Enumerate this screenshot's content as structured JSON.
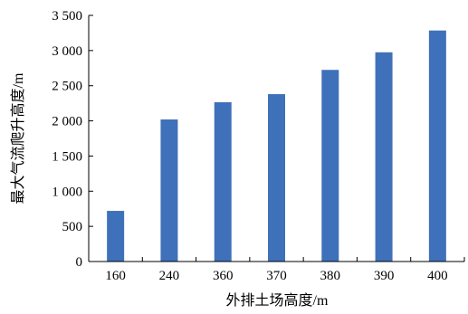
{
  "chart_data": {
    "type": "bar",
    "title": "",
    "xlabel": "外排土场高度/m",
    "ylabel": "最大气流爬升高度/m",
    "categories": [
      "160",
      "240",
      "360",
      "370",
      "380",
      "390",
      "400"
    ],
    "values": [
      720,
      2020,
      2265,
      2380,
      2725,
      2975,
      3285
    ],
    "ylim": [
      0,
      3500
    ],
    "yticks": [
      0,
      500,
      1000,
      1500,
      2000,
      2500,
      3000,
      3500
    ],
    "ytick_labels": [
      "0",
      "500",
      "1 000",
      "1 500",
      "2 000",
      "2 500",
      "3 000",
      "3 500"
    ],
    "grid": false,
    "legend": "none",
    "colors": {
      "bar": "#3f71ba",
      "axis": "#000000"
    }
  }
}
